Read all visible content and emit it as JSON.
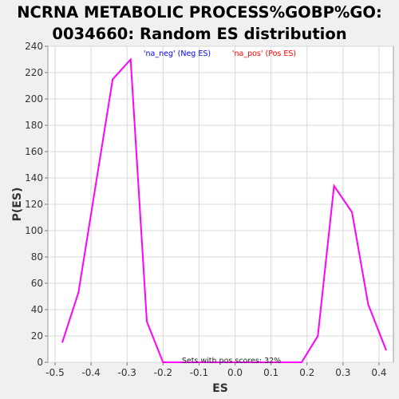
{
  "chart_data": {
    "type": "line",
    "title_lines": [
      "NCRNA METABOLIC PROCESS%GOBP%GO:",
      "0034660: Random ES distribution"
    ],
    "xlabel": "ES",
    "ylabel": "P(ES)",
    "xlim": [
      -0.52,
      0.44
    ],
    "ylim": [
      0,
      240
    ],
    "x_ticks": [
      -0.5,
      -0.4,
      -0.3,
      -0.2,
      -0.1,
      0.0,
      0.1,
      0.2,
      0.3,
      0.4
    ],
    "x_tick_labels": [
      "-0.5",
      "-0.4",
      "-0.3",
      "-0.2",
      "-0.1",
      "0.0",
      "0.1",
      "0.2",
      "0.3",
      "0.4"
    ],
    "y_ticks": [
      0,
      20,
      40,
      60,
      80,
      100,
      120,
      140,
      160,
      180,
      200,
      220,
      240
    ],
    "y_tick_labels": [
      "0",
      "20",
      "40",
      "60",
      "80",
      "100",
      "120",
      "140",
      "160",
      "180",
      "200",
      "220",
      "240"
    ],
    "grid": true,
    "legend_position": "top",
    "legend": [
      {
        "label": "'na_neg' (Neg ES)",
        "color": "#0000ff"
      },
      {
        "label": "'na_pos' (Pos ES)",
        "color": "#ff0000"
      }
    ],
    "annotation": "Sets with pos scores: 32%",
    "series": [
      {
        "color": "#ff00ff",
        "x": [
          -0.48,
          -0.435,
          -0.34,
          -0.29,
          -0.245,
          -0.2,
          -0.15,
          -0.1,
          -0.05,
          0.0,
          0.05,
          0.1,
          0.15,
          0.185,
          0.23,
          0.275,
          0.325,
          0.37,
          0.42
        ],
        "y": [
          15,
          53,
          215,
          230,
          31,
          0,
          0,
          0,
          0,
          0,
          0,
          0,
          0,
          0,
          20,
          134,
          114,
          44,
          9
        ]
      }
    ]
  }
}
